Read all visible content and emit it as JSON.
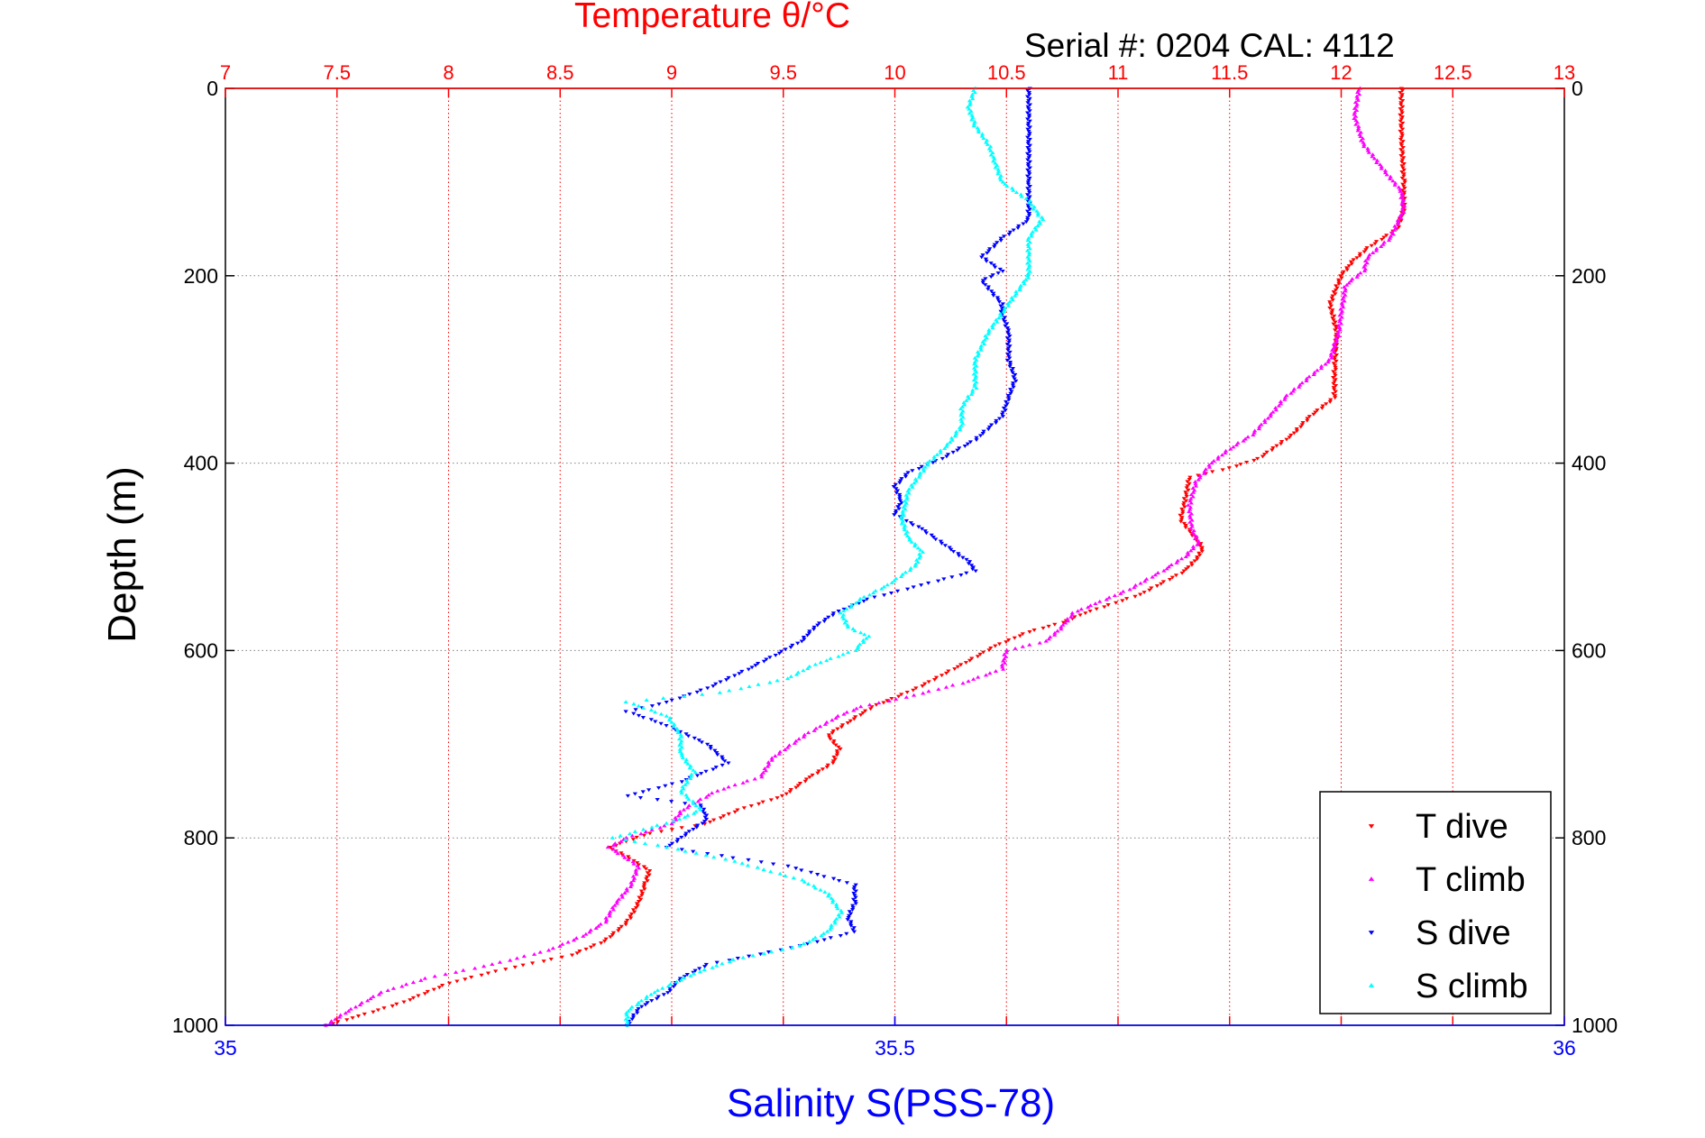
{
  "serial_label": "Serial #: 0204  CAL: 4112",
  "colors": {
    "temperature_axis": "#ff0000",
    "salinity_axis": "#0000ff",
    "t_dive": "#ff0000",
    "t_climb": "#ff00ff",
    "s_dive": "#0000ff",
    "s_climb": "#00ffff",
    "depth_grid": "#808080",
    "temperature_grid": "#ff0000"
  },
  "chart_data": {
    "type": "scatter",
    "title": "Temperature θ/°C",
    "xlabel_top": "Temperature θ/°C",
    "xlabel_bottom": "Salinity S(PSS-78)",
    "ylabel": "Depth (m)",
    "temperature_axis": {
      "lim": [
        7,
        13
      ],
      "ticks": [
        7,
        7.5,
        8,
        8.5,
        9,
        9.5,
        10,
        10.5,
        11,
        11.5,
        12,
        12.5,
        13
      ],
      "labels": [
        "7",
        "7.5",
        "8",
        "8.5",
        "9",
        "9.5",
        "10",
        "10.5",
        "11",
        "11.5",
        "12",
        "12.5",
        "13"
      ],
      "position": "top"
    },
    "salinity_axis": {
      "lim": [
        35,
        36
      ],
      "ticks": [
        35,
        35.5,
        36
      ],
      "labels": [
        "35",
        "35.5",
        "36"
      ],
      "position": "bottom"
    },
    "depth_axis": {
      "lim": [
        0,
        1000
      ],
      "reversed": true,
      "ticks": [
        0,
        200,
        400,
        600,
        800,
        1000
      ],
      "labels": [
        "0",
        "200",
        "400",
        "600",
        "800",
        "1000"
      ],
      "both_sides": true
    },
    "grid": true,
    "legend": {
      "placement": "bottom-right",
      "entries": [
        "T dive",
        "T climb",
        "S dive",
        "S climb"
      ]
    },
    "series": [
      {
        "name": "T dive",
        "axis": "temperature",
        "marker": "triangle-down",
        "points": [
          [
            12.27,
            0
          ],
          [
            12.27,
            50
          ],
          [
            12.28,
            100
          ],
          [
            12.28,
            130
          ],
          [
            12.25,
            150
          ],
          [
            12.12,
            170
          ],
          [
            12.05,
            185
          ],
          [
            12.0,
            200
          ],
          [
            11.95,
            230
          ],
          [
            11.98,
            260
          ],
          [
            11.97,
            300
          ],
          [
            11.97,
            330
          ],
          [
            11.86,
            350
          ],
          [
            11.78,
            370
          ],
          [
            11.63,
            395
          ],
          [
            11.5,
            405
          ],
          [
            11.32,
            415
          ],
          [
            11.3,
            440
          ],
          [
            11.28,
            460
          ],
          [
            11.33,
            475
          ],
          [
            11.38,
            490
          ],
          [
            11.36,
            500
          ],
          [
            11.3,
            515
          ],
          [
            11.1,
            540
          ],
          [
            10.85,
            560
          ],
          [
            10.75,
            570
          ],
          [
            10.6,
            580
          ],
          [
            10.45,
            595
          ],
          [
            10.3,
            615
          ],
          [
            10.1,
            640
          ],
          [
            9.9,
            660
          ],
          [
            9.8,
            675
          ],
          [
            9.7,
            690
          ],
          [
            9.75,
            705
          ],
          [
            9.72,
            720
          ],
          [
            9.62,
            735
          ],
          [
            9.5,
            755
          ],
          [
            9.3,
            770
          ],
          [
            9.15,
            785
          ],
          [
            8.9,
            795
          ],
          [
            8.72,
            810
          ],
          [
            8.8,
            820
          ],
          [
            8.9,
            835
          ],
          [
            8.88,
            850
          ],
          [
            8.85,
            870
          ],
          [
            8.8,
            890
          ],
          [
            8.7,
            910
          ],
          [
            8.55,
            925
          ],
          [
            8.25,
            940
          ],
          [
            8.0,
            955
          ],
          [
            7.8,
            975
          ],
          [
            7.6,
            990
          ],
          [
            7.45,
            1000
          ]
        ]
      },
      {
        "name": "T climb",
        "axis": "temperature",
        "marker": "triangle-up",
        "points": [
          [
            12.08,
            0
          ],
          [
            12.06,
            30
          ],
          [
            12.1,
            60
          ],
          [
            12.2,
            90
          ],
          [
            12.27,
            110
          ],
          [
            12.28,
            130
          ],
          [
            12.22,
            160
          ],
          [
            12.12,
            180
          ],
          [
            12.1,
            195
          ],
          [
            12.02,
            210
          ],
          [
            12.0,
            240
          ],
          [
            11.99,
            260
          ],
          [
            11.95,
            290
          ],
          [
            11.85,
            310
          ],
          [
            11.75,
            330
          ],
          [
            11.68,
            350
          ],
          [
            11.6,
            370
          ],
          [
            11.5,
            385
          ],
          [
            11.42,
            400
          ],
          [
            11.35,
            420
          ],
          [
            11.32,
            445
          ],
          [
            11.33,
            470
          ],
          [
            11.36,
            485
          ],
          [
            11.3,
            500
          ],
          [
            11.2,
            515
          ],
          [
            11.05,
            535
          ],
          [
            10.9,
            550
          ],
          [
            10.8,
            560
          ],
          [
            10.75,
            575
          ],
          [
            10.68,
            590
          ],
          [
            10.5,
            600
          ],
          [
            10.48,
            620
          ],
          [
            10.3,
            635
          ],
          [
            10.05,
            650
          ],
          [
            9.85,
            660
          ],
          [
            9.75,
            670
          ],
          [
            9.6,
            690
          ],
          [
            9.45,
            715
          ],
          [
            9.4,
            735
          ],
          [
            9.2,
            750
          ],
          [
            9.05,
            770
          ],
          [
            9.0,
            785
          ],
          [
            8.8,
            800
          ],
          [
            8.72,
            810
          ],
          [
            8.85,
            830
          ],
          [
            8.82,
            850
          ],
          [
            8.75,
            870
          ],
          [
            8.7,
            890
          ],
          [
            8.6,
            905
          ],
          [
            8.45,
            920
          ],
          [
            8.2,
            935
          ],
          [
            7.9,
            950
          ],
          [
            7.7,
            965
          ],
          [
            7.55,
            985
          ],
          [
            7.45,
            1000
          ]
        ]
      },
      {
        "name": "S dive",
        "axis": "salinity",
        "marker": "triangle-down",
        "points": [
          [
            35.6,
            0
          ],
          [
            35.6,
            50
          ],
          [
            35.6,
            100
          ],
          [
            35.6,
            140
          ],
          [
            35.58,
            160
          ],
          [
            35.565,
            180
          ],
          [
            35.58,
            195
          ],
          [
            35.565,
            205
          ],
          [
            35.58,
            230
          ],
          [
            35.58,
            240
          ],
          [
            35.585,
            260
          ],
          [
            35.585,
            290
          ],
          [
            35.59,
            310
          ],
          [
            35.585,
            330
          ],
          [
            35.58,
            350
          ],
          [
            35.56,
            375
          ],
          [
            35.535,
            395
          ],
          [
            35.51,
            410
          ],
          [
            35.5,
            425
          ],
          [
            35.505,
            440
          ],
          [
            35.5,
            455
          ],
          [
            35.52,
            470
          ],
          [
            35.54,
            490
          ],
          [
            35.555,
            505
          ],
          [
            35.56,
            515
          ],
          [
            35.52,
            530
          ],
          [
            35.48,
            545
          ],
          [
            35.455,
            560
          ],
          [
            35.44,
            575
          ],
          [
            35.43,
            590
          ],
          [
            35.41,
            605
          ],
          [
            35.39,
            620
          ],
          [
            35.36,
            640
          ],
          [
            35.33,
            655
          ],
          [
            35.3,
            665
          ],
          [
            35.33,
            680
          ],
          [
            35.36,
            700
          ],
          [
            35.375,
            720
          ],
          [
            35.34,
            740
          ],
          [
            35.3,
            755
          ],
          [
            35.355,
            765
          ],
          [
            35.36,
            780
          ],
          [
            35.345,
            795
          ],
          [
            35.33,
            810
          ],
          [
            35.42,
            830
          ],
          [
            35.47,
            850
          ],
          [
            35.47,
            870
          ],
          [
            35.465,
            885
          ],
          [
            35.47,
            900
          ],
          [
            35.43,
            915
          ],
          [
            35.36,
            935
          ],
          [
            35.34,
            950
          ],
          [
            35.33,
            965
          ],
          [
            35.31,
            980
          ],
          [
            35.3,
            1000
          ]
        ]
      },
      {
        "name": "S climb",
        "axis": "salinity",
        "marker": "triangle-up",
        "points": [
          [
            35.56,
            0
          ],
          [
            35.555,
            20
          ],
          [
            35.56,
            40
          ],
          [
            35.57,
            60
          ],
          [
            35.575,
            80
          ],
          [
            35.58,
            100
          ],
          [
            35.6,
            120
          ],
          [
            35.61,
            140
          ],
          [
            35.6,
            160
          ],
          [
            35.6,
            180
          ],
          [
            35.6,
            200
          ],
          [
            35.585,
            230
          ],
          [
            35.57,
            260
          ],
          [
            35.56,
            290
          ],
          [
            35.56,
            320
          ],
          [
            35.55,
            340
          ],
          [
            35.55,
            360
          ],
          [
            35.54,
            380
          ],
          [
            35.525,
            400
          ],
          [
            35.51,
            430
          ],
          [
            35.505,
            460
          ],
          [
            35.51,
            480
          ],
          [
            35.52,
            495
          ],
          [
            35.515,
            510
          ],
          [
            35.495,
            530
          ],
          [
            35.475,
            545
          ],
          [
            35.46,
            560
          ],
          [
            35.465,
            575
          ],
          [
            35.48,
            585
          ],
          [
            35.47,
            600
          ],
          [
            35.44,
            615
          ],
          [
            35.42,
            630
          ],
          [
            35.37,
            645
          ],
          [
            35.3,
            655
          ],
          [
            35.33,
            670
          ],
          [
            35.34,
            690
          ],
          [
            35.34,
            710
          ],
          [
            35.35,
            730
          ],
          [
            35.34,
            750
          ],
          [
            35.355,
            770
          ],
          [
            35.34,
            780
          ],
          [
            35.29,
            800
          ],
          [
            35.33,
            810
          ],
          [
            35.38,
            825
          ],
          [
            35.43,
            845
          ],
          [
            35.45,
            860
          ],
          [
            35.46,
            880
          ],
          [
            35.45,
            900
          ],
          [
            35.43,
            915
          ],
          [
            35.38,
            930
          ],
          [
            35.35,
            945
          ],
          [
            35.32,
            965
          ],
          [
            35.3,
            985
          ],
          [
            35.3,
            1000
          ]
        ]
      }
    ]
  }
}
